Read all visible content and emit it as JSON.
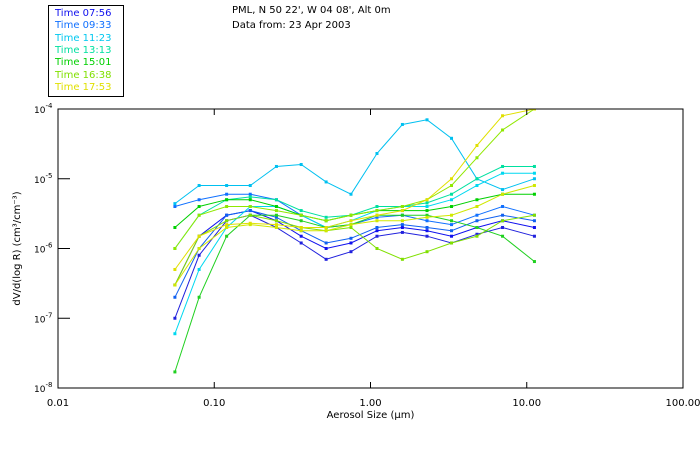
{
  "header": {
    "location": "PML, N 50 22', W 04 08', Alt 0m",
    "date": "Data from: 23 Apr 2003"
  },
  "legend": [
    {
      "label": "Time 07:56",
      "color": "#1010ee"
    },
    {
      "label": "Time 09:33",
      "color": "#1070ff"
    },
    {
      "label": "Time 11:23",
      "color": "#00c8f0"
    },
    {
      "label": "Time 13:13",
      "color": "#00e0a0"
    },
    {
      "label": "Time 15:01",
      "color": "#00d000"
    },
    {
      "label": "Time 16:38",
      "color": "#80e000"
    },
    {
      "label": "Time 17:53",
      "color": "#e0e000"
    }
  ],
  "chart_data": {
    "type": "line",
    "xlabel": "Aerosol Size (µm)",
    "ylabel": "dV/d(log R) (cm³/cm⁻³)",
    "xscale": "log",
    "yscale": "log",
    "xlim": [
      0.01,
      100
    ],
    "ylim": [
      1e-08,
      0.0001
    ],
    "xticks": [
      "0.01",
      "0.10",
      "1.00",
      "10.00",
      "100.00"
    ],
    "yticks": [
      {
        "base": "10",
        "exp": "-4"
      },
      {
        "base": "10",
        "exp": "-5"
      },
      {
        "base": "10",
        "exp": "-6"
      },
      {
        "base": "10",
        "exp": "-7"
      },
      {
        "base": "10",
        "exp": "-8"
      }
    ],
    "x": [
      0.056,
      0.08,
      0.12,
      0.17,
      0.25,
      0.36,
      0.52,
      0.75,
      1.1,
      1.6,
      2.3,
      3.3,
      4.8,
      7.0,
      11.2
    ],
    "series": [
      {
        "name": "Time 07:56",
        "color": "#1010ee",
        "values": [
          3e-07,
          1.5e-06,
          3e-06,
          3.5e-06,
          2.5e-06,
          1.5e-06,
          1e-06,
          1.2e-06,
          1.8e-06,
          2e-06,
          1.8e-06,
          1.5e-06,
          2e-06,
          2.5e-06,
          2e-06
        ]
      },
      {
        "name": "Time 07:56",
        "color": "#2020dd",
        "values": [
          1e-07,
          8e-07,
          2.5e-06,
          3e-06,
          2e-06,
          1.2e-06,
          7e-07,
          9e-07,
          1.5e-06,
          1.7e-06,
          1.5e-06,
          1.2e-06,
          1.6e-06,
          2e-06,
          1.5e-06
        ]
      },
      {
        "name": "Time 09:33",
        "color": "#1070ff",
        "values": [
          4e-06,
          5e-06,
          6e-06,
          6e-06,
          5e-06,
          3e-06,
          2e-06,
          2.2e-06,
          2.8e-06,
          3e-06,
          2.5e-06,
          2.2e-06,
          3e-06,
          4e-06,
          3e-06
        ]
      },
      {
        "name": "Time 09:33",
        "color": "#1060f0",
        "values": [
          2e-07,
          1e-06,
          3e-06,
          3.5e-06,
          2.8e-06,
          1.8e-06,
          1.2e-06,
          1.4e-06,
          2e-06,
          2.2e-06,
          2e-06,
          1.8e-06,
          2.5e-06,
          3e-06,
          2.5e-06
        ]
      },
      {
        "name": "Time 11:23",
        "color": "#00c0f0",
        "values": [
          4.4e-06,
          8e-06,
          8e-06,
          8e-06,
          1.5e-05,
          1.6e-05,
          9e-06,
          6e-06,
          2.3e-05,
          6e-05,
          7e-05,
          3.8e-05,
          1e-05,
          7e-06,
          1e-05
        ]
      },
      {
        "name": "Time 11:23",
        "color": "#00d8f0",
        "values": [
          6e-08,
          5e-07,
          2e-06,
          4e-06,
          4e-06,
          3e-06,
          2e-06,
          2.5e-06,
          3.5e-06,
          4e-06,
          4e-06,
          5e-06,
          8e-06,
          1.2e-05,
          1.2e-05
        ]
      },
      {
        "name": "Time 13:13",
        "color": "#00e0a0",
        "values": [
          1e-06,
          3e-06,
          5e-06,
          5.5e-06,
          5e-06,
          3.5e-06,
          2.8e-06,
          3e-06,
          4e-06,
          4e-06,
          4.5e-06,
          6e-06,
          1e-05,
          1.5e-05,
          1.5e-05
        ]
      },
      {
        "name": "Time 15:01",
        "color": "#00d000",
        "values": [
          2e-06,
          4e-06,
          5e-06,
          5e-06,
          4e-06,
          3e-06,
          2.5e-06,
          3e-06,
          3.5e-06,
          3.5e-06,
          3.5e-06,
          4e-06,
          5e-06,
          6e-06,
          6e-06
        ]
      },
      {
        "name": "Time 15:01",
        "color": "#20d020",
        "values": [
          1.7e-08,
          2e-07,
          1.5e-06,
          3e-06,
          3e-06,
          2.5e-06,
          2e-06,
          2.2e-06,
          3e-06,
          3e-06,
          3e-06,
          2.5e-06,
          2e-06,
          1.5e-06,
          6.5e-07
        ]
      },
      {
        "name": "Time 16:38",
        "color": "#80e000",
        "values": [
          3e-07,
          1.5e-06,
          2.5e-06,
          3e-06,
          2.5e-06,
          2e-06,
          1.8e-06,
          2e-06,
          1e-06,
          7e-07,
          9e-07,
          1.2e-06,
          1.5e-06,
          2.5e-06,
          3e-06
        ]
      },
      {
        "name": "Time 16:38",
        "color": "#90e800",
        "values": [
          1e-06,
          3e-06,
          4e-06,
          4e-06,
          3.5e-06,
          3e-06,
          2.5e-06,
          3e-06,
          3.5e-06,
          4e-06,
          5e-06,
          8e-06,
          2e-05,
          5e-05,
          0.0001
        ]
      },
      {
        "name": "Time 17:53",
        "color": "#e0e000",
        "values": [
          5e-07,
          1.5e-06,
          2.2e-06,
          2.3e-06,
          2.2e-06,
          2e-06,
          2e-06,
          2.5e-06,
          3e-06,
          3.5e-06,
          5e-06,
          1e-05,
          3e-05,
          8e-05,
          0.0001
        ]
      },
      {
        "name": "Time 17:53",
        "color": "#d0e800",
        "values": [
          3e-07,
          1e-06,
          2e-06,
          2.2e-06,
          2e-06,
          1.8e-06,
          1.8e-06,
          2.2e-06,
          2.5e-06,
          2.5e-06,
          2.8e-06,
          3e-06,
          4e-06,
          6e-06,
          8e-06
        ]
      }
    ]
  }
}
